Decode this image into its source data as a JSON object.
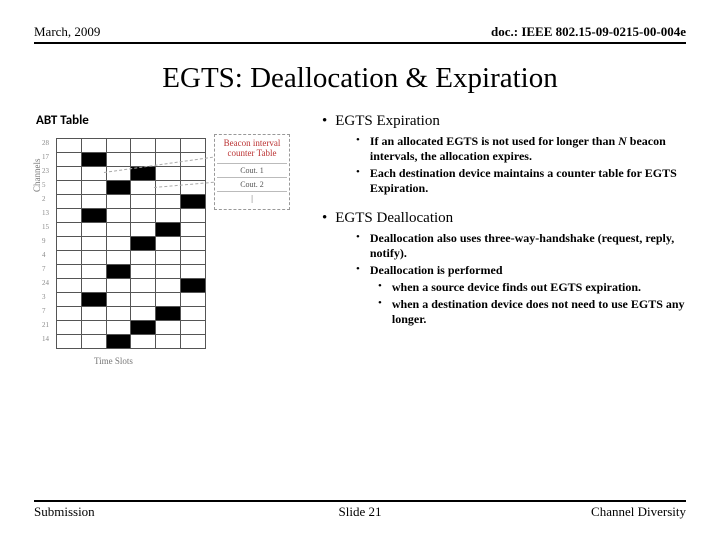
{
  "header": {
    "date": "March, 2009",
    "doc": "doc.: IEEE 802.15-09-0215-00-004e"
  },
  "title": "EGTS: Deallocation & Expiration",
  "abt_label": "ABT Table",
  "counter": {
    "title": "Beacon interval counter Table",
    "rows": [
      "Cout. 1",
      "Cout. 2",
      "|"
    ]
  },
  "axis": {
    "x": "Time Slots",
    "y": "Channels",
    "yticks": "28\n17\n23\n5\n2\n13\n15\n9\n4\n7\n24\n3\n7\n21\n14"
  },
  "sections": [
    {
      "heading": "EGTS Expiration",
      "items": [
        {
          "text_pre": "If an allocated EGTS is not used for longer than ",
          "italic": "N",
          "text_post": " beacon intervals, the allocation expires."
        },
        {
          "text": "Each destination device maintains a counter table for EGTS Expiration."
        }
      ]
    },
    {
      "heading": "EGTS Deallocation",
      "items": [
        {
          "text": "Deallocation also uses three-way-handshake (request, reply, notify)."
        },
        {
          "text": "Deallocation is performed",
          "sub": [
            {
              "text": "when a source device finds out EGTS expiration."
            },
            {
              "text": "when a destination device does not need to use EGTS any longer."
            }
          ]
        }
      ]
    }
  ],
  "footer": {
    "left": "Submission",
    "slide": "Slide 21",
    "right": "Channel Diversity"
  },
  "grid": {
    "rows": 15,
    "cols": 6,
    "black": [
      [
        1,
        1
      ],
      [
        2,
        3
      ],
      [
        3,
        2
      ],
      [
        4,
        5
      ],
      [
        5,
        1
      ],
      [
        6,
        4
      ],
      [
        7,
        3
      ],
      [
        9,
        2
      ],
      [
        10,
        5
      ],
      [
        11,
        1
      ],
      [
        12,
        4
      ],
      [
        13,
        3
      ],
      [
        14,
        2
      ]
    ]
  }
}
